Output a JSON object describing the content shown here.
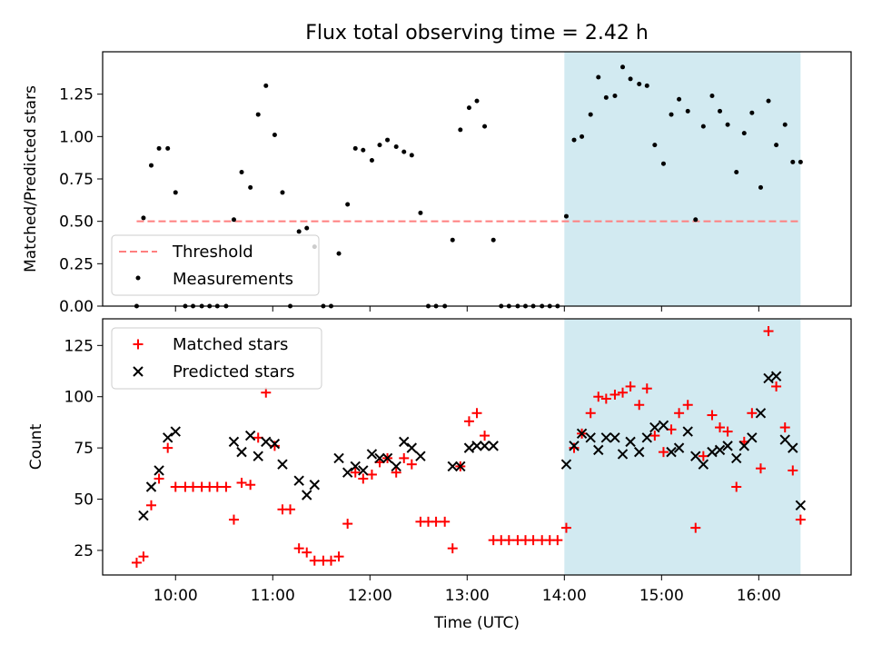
{
  "colors": {
    "shade": "#add8e6",
    "threshold": "#ff7f7f",
    "measurement": "#000000",
    "matched": "#ff0000",
    "predicted": "#000000"
  },
  "chart_data": [
    {
      "type": "scatter",
      "title": "Flux total observing time = 2.42 h",
      "xlabel": "",
      "ylabel": "Matched/Predicted stars",
      "x_unit": "hours (UTC)",
      "xlim": [
        9.25,
        16.95
      ],
      "ylim": [
        0,
        1.5
      ],
      "yticks": [
        0.0,
        0.25,
        0.5,
        0.75,
        1.0,
        1.25
      ],
      "ytick_labels": [
        "0.00",
        "0.25",
        "0.50",
        "0.75",
        "1.00",
        "1.25"
      ],
      "xticks": [
        10,
        11,
        12,
        13,
        14,
        15,
        16
      ],
      "shaded_region": [
        14.0,
        16.43
      ],
      "legend": {
        "placement": "lower left",
        "entries": [
          "Threshold",
          "Measurements"
        ]
      },
      "series": [
        {
          "name": "Threshold",
          "kind": "dashed-line",
          "x": [
            9.6,
            16.43
          ],
          "y": [
            0.5,
            0.5
          ]
        },
        {
          "name": "Measurements",
          "kind": "points",
          "points": [
            [
              9.6,
              0.0
            ],
            [
              9.67,
              0.52
            ],
            [
              9.75,
              0.83
            ],
            [
              9.83,
              0.93
            ],
            [
              9.92,
              0.93
            ],
            [
              10.0,
              0.67
            ],
            [
              10.1,
              0.0
            ],
            [
              10.18,
              0.0
            ],
            [
              10.27,
              0.0
            ],
            [
              10.35,
              0.0
            ],
            [
              10.43,
              0.0
            ],
            [
              10.52,
              0.0
            ],
            [
              10.6,
              0.51
            ],
            [
              10.68,
              0.79
            ],
            [
              10.77,
              0.7
            ],
            [
              10.85,
              1.13
            ],
            [
              10.93,
              1.3
            ],
            [
              11.02,
              1.01
            ],
            [
              11.1,
              0.67
            ],
            [
              11.18,
              0.0
            ],
            [
              11.27,
              0.44
            ],
            [
              11.35,
              0.46
            ],
            [
              11.43,
              0.35
            ],
            [
              11.52,
              0.0
            ],
            [
              11.6,
              0.0
            ],
            [
              11.68,
              0.31
            ],
            [
              11.77,
              0.6
            ],
            [
              11.85,
              0.93
            ],
            [
              11.93,
              0.92
            ],
            [
              12.02,
              0.86
            ],
            [
              12.1,
              0.95
            ],
            [
              12.18,
              0.98
            ],
            [
              12.27,
              0.94
            ],
            [
              12.35,
              0.91
            ],
            [
              12.43,
              0.89
            ],
            [
              12.52,
              0.55
            ],
            [
              12.6,
              0.0
            ],
            [
              12.68,
              0.0
            ],
            [
              12.77,
              0.0
            ],
            [
              12.85,
              0.39
            ],
            [
              12.93,
              1.04
            ],
            [
              13.02,
              1.17
            ],
            [
              13.1,
              1.21
            ],
            [
              13.18,
              1.06
            ],
            [
              13.27,
              0.39
            ],
            [
              13.35,
              0.0
            ],
            [
              13.43,
              0.0
            ],
            [
              13.52,
              0.0
            ],
            [
              13.6,
              0.0
            ],
            [
              13.68,
              0.0
            ],
            [
              13.77,
              0.0
            ],
            [
              13.85,
              0.0
            ],
            [
              13.93,
              0.0
            ],
            [
              14.02,
              0.53
            ],
            [
              14.1,
              0.98
            ],
            [
              14.18,
              1.0
            ],
            [
              14.27,
              1.13
            ],
            [
              14.35,
              1.35
            ],
            [
              14.43,
              1.23
            ],
            [
              14.52,
              1.24
            ],
            [
              14.6,
              1.41
            ],
            [
              14.68,
              1.34
            ],
            [
              14.77,
              1.31
            ],
            [
              14.85,
              1.3
            ],
            [
              14.93,
              0.95
            ],
            [
              15.02,
              0.84
            ],
            [
              15.1,
              1.13
            ],
            [
              15.18,
              1.22
            ],
            [
              15.27,
              1.15
            ],
            [
              15.35,
              0.51
            ],
            [
              15.43,
              1.06
            ],
            [
              15.52,
              1.24
            ],
            [
              15.6,
              1.15
            ],
            [
              15.68,
              1.07
            ],
            [
              15.77,
              0.79
            ],
            [
              15.85,
              1.02
            ],
            [
              15.93,
              1.14
            ],
            [
              16.02,
              0.7
            ],
            [
              16.1,
              1.21
            ],
            [
              16.18,
              0.95
            ],
            [
              16.27,
              1.07
            ],
            [
              16.35,
              0.85
            ],
            [
              16.43,
              0.85
            ]
          ]
        }
      ]
    },
    {
      "type": "scatter",
      "title": "",
      "xlabel": "Time (UTC)",
      "ylabel": "Count",
      "x_unit": "hours (UTC)",
      "xlim": [
        9.25,
        16.95
      ],
      "ylim": [
        13,
        138
      ],
      "yticks": [
        25,
        50,
        75,
        100,
        125
      ],
      "ytick_labels": [
        "25",
        "50",
        "75",
        "100",
        "125"
      ],
      "xticks": [
        10,
        11,
        12,
        13,
        14,
        15,
        16
      ],
      "xtick_labels": [
        "10:00",
        "11:00",
        "12:00",
        "13:00",
        "14:00",
        "15:00",
        "16:00"
      ],
      "shaded_region": [
        14.0,
        16.43
      ],
      "legend": {
        "placement": "upper left",
        "entries": [
          "Matched stars",
          "Predicted stars"
        ]
      },
      "series": [
        {
          "name": "Matched stars",
          "marker": "+",
          "points": [
            [
              9.6,
              19
            ],
            [
              9.67,
              22
            ],
            [
              9.75,
              47
            ],
            [
              9.83,
              60
            ],
            [
              9.92,
              75
            ],
            [
              10.0,
              56
            ],
            [
              10.1,
              56
            ],
            [
              10.18,
              56
            ],
            [
              10.27,
              56
            ],
            [
              10.35,
              56
            ],
            [
              10.43,
              56
            ],
            [
              10.52,
              56
            ],
            [
              10.6,
              40
            ],
            [
              10.68,
              58
            ],
            [
              10.77,
              57
            ],
            [
              10.85,
              80
            ],
            [
              10.93,
              102
            ],
            [
              11.02,
              76
            ],
            [
              11.1,
              45
            ],
            [
              11.18,
              45
            ],
            [
              11.27,
              26
            ],
            [
              11.35,
              24
            ],
            [
              11.43,
              20
            ],
            [
              11.52,
              20
            ],
            [
              11.6,
              20
            ],
            [
              11.68,
              22
            ],
            [
              11.77,
              38
            ],
            [
              11.85,
              63
            ],
            [
              11.93,
              60
            ],
            [
              12.02,
              62
            ],
            [
              12.1,
              68
            ],
            [
              12.18,
              70
            ],
            [
              12.27,
              63
            ],
            [
              12.35,
              70
            ],
            [
              12.43,
              67
            ],
            [
              12.52,
              39
            ],
            [
              12.6,
              39
            ],
            [
              12.68,
              39
            ],
            [
              12.77,
              39
            ],
            [
              12.85,
              26
            ],
            [
              12.93,
              66
            ],
            [
              13.02,
              88
            ],
            [
              13.1,
              92
            ],
            [
              13.18,
              81
            ],
            [
              13.27,
              30
            ],
            [
              13.35,
              30
            ],
            [
              13.43,
              30
            ],
            [
              13.52,
              30
            ],
            [
              13.6,
              30
            ],
            [
              13.68,
              30
            ],
            [
              13.77,
              30
            ],
            [
              13.85,
              30
            ],
            [
              13.93,
              30
            ],
            [
              14.02,
              36
            ],
            [
              14.1,
              75
            ],
            [
              14.18,
              82
            ],
            [
              14.27,
              92
            ],
            [
              14.35,
              100
            ],
            [
              14.43,
              99
            ],
            [
              14.52,
              101
            ],
            [
              14.6,
              102
            ],
            [
              14.68,
              105
            ],
            [
              14.77,
              96
            ],
            [
              14.85,
              104
            ],
            [
              14.93,
              81
            ],
            [
              15.02,
              73
            ],
            [
              15.1,
              84
            ],
            [
              15.18,
              92
            ],
            [
              15.27,
              96
            ],
            [
              15.35,
              36
            ],
            [
              15.43,
              71
            ],
            [
              15.52,
              91
            ],
            [
              15.6,
              85
            ],
            [
              15.68,
              83
            ],
            [
              15.77,
              56
            ],
            [
              15.85,
              78
            ],
            [
              15.93,
              92
            ],
            [
              16.02,
              65
            ],
            [
              16.1,
              132
            ],
            [
              16.18,
              105
            ],
            [
              16.27,
              85
            ],
            [
              16.35,
              64
            ],
            [
              16.43,
              40
            ]
          ]
        },
        {
          "name": "Predicted stars",
          "marker": "x",
          "points": [
            [
              9.67,
              42
            ],
            [
              9.75,
              56
            ],
            [
              9.83,
              64
            ],
            [
              9.92,
              80
            ],
            [
              10.0,
              83
            ],
            [
              10.6,
              78
            ],
            [
              10.68,
              73
            ],
            [
              10.77,
              81
            ],
            [
              10.85,
              71
            ],
            [
              10.93,
              78
            ],
            [
              11.02,
              77
            ],
            [
              11.1,
              67
            ],
            [
              11.27,
              59
            ],
            [
              11.35,
              52
            ],
            [
              11.43,
              57
            ],
            [
              11.68,
              70
            ],
            [
              11.77,
              63
            ],
            [
              11.85,
              66
            ],
            [
              11.93,
              64
            ],
            [
              12.02,
              72
            ],
            [
              12.1,
              70
            ],
            [
              12.18,
              70
            ],
            [
              12.27,
              66
            ],
            [
              12.35,
              78
            ],
            [
              12.43,
              75
            ],
            [
              12.52,
              71
            ],
            [
              12.85,
              66
            ],
            [
              12.93,
              66
            ],
            [
              13.02,
              75
            ],
            [
              13.1,
              76
            ],
            [
              13.18,
              76
            ],
            [
              13.27,
              76
            ],
            [
              14.02,
              67
            ],
            [
              14.1,
              76
            ],
            [
              14.18,
              82
            ],
            [
              14.27,
              80
            ],
            [
              14.35,
              74
            ],
            [
              14.43,
              80
            ],
            [
              14.52,
              80
            ],
            [
              14.6,
              72
            ],
            [
              14.68,
              78
            ],
            [
              14.77,
              73
            ],
            [
              14.85,
              80
            ],
            [
              14.93,
              85
            ],
            [
              15.02,
              86
            ],
            [
              15.1,
              73
            ],
            [
              15.18,
              75
            ],
            [
              15.27,
              83
            ],
            [
              15.35,
              71
            ],
            [
              15.43,
              67
            ],
            [
              15.52,
              73
            ],
            [
              15.6,
              74
            ],
            [
              15.68,
              76
            ],
            [
              15.77,
              70
            ],
            [
              15.85,
              76
            ],
            [
              15.93,
              80
            ],
            [
              16.02,
              92
            ],
            [
              16.1,
              109
            ],
            [
              16.18,
              110
            ],
            [
              16.27,
              79
            ],
            [
              16.35,
              75
            ],
            [
              16.43,
              47
            ]
          ]
        }
      ]
    }
  ]
}
